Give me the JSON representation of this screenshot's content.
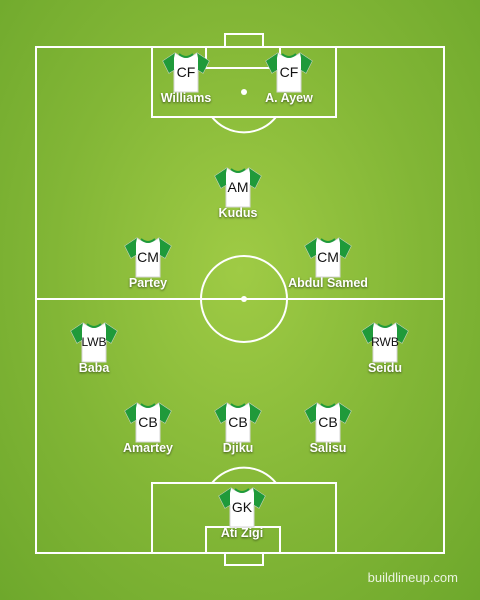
{
  "colors": {
    "shirt_body": "#ffffff",
    "shirt_trim": "#1f9a3a",
    "pitch_line": "#ffffff"
  },
  "watermark": "buildlineup.com",
  "players": [
    {
      "id": "williams",
      "pos": "CF",
      "name": "Williams"
    },
    {
      "id": "a-ayew",
      "pos": "CF",
      "name": "A. Ayew"
    },
    {
      "id": "kudus",
      "pos": "AM",
      "name": "Kudus"
    },
    {
      "id": "partey",
      "pos": "CM",
      "name": "Partey"
    },
    {
      "id": "abdul-samed",
      "pos": "CM",
      "name": "Abdul Samed"
    },
    {
      "id": "baba",
      "pos": "LWB",
      "name": "Baba"
    },
    {
      "id": "seidu",
      "pos": "RWB",
      "name": "Seidu"
    },
    {
      "id": "amartey",
      "pos": "CB",
      "name": "Amartey"
    },
    {
      "id": "djiku",
      "pos": "CB",
      "name": "Djiku"
    },
    {
      "id": "salisu",
      "pos": "CB",
      "name": "Salisu"
    },
    {
      "id": "ati-zigi",
      "pos": "GK",
      "name": "Ati Zigi"
    }
  ]
}
